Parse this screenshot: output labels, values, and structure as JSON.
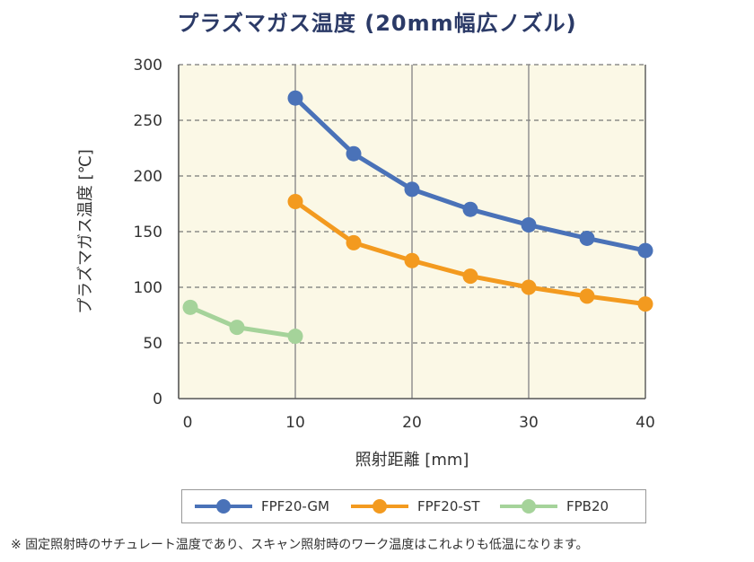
{
  "chart_data": {
    "type": "line",
    "title": "プラズマガス温度 (20mm幅広ノズル)",
    "xlabel": "照射距離 [mm]",
    "ylabel": "プラズマガス温度 [℃]",
    "xlim": [
      0,
      40
    ],
    "ylim": [
      0,
      300
    ],
    "xticks": [
      "0",
      "10",
      "20",
      "30",
      "40"
    ],
    "yticks": [
      "0",
      "50",
      "100",
      "150",
      "200",
      "250",
      "300"
    ],
    "grid": true,
    "legend_position": "bottom",
    "series": [
      {
        "name": "FPF20-GM",
        "color": "#4a72b8",
        "x": [
          10,
          15,
          20,
          25,
          30,
          35,
          40
        ],
        "y": [
          270,
          220,
          188,
          170,
          156,
          144,
          133
        ]
      },
      {
        "name": "FPF20-ST",
        "color": "#f39a1f",
        "x": [
          10,
          15,
          20,
          25,
          30,
          35,
          40
        ],
        "y": [
          177,
          140,
          124,
          110,
          100,
          92,
          85
        ]
      },
      {
        "name": "FPB20",
        "color": "#a5d39a",
        "x": [
          1,
          5,
          10
        ],
        "y": [
          82,
          64,
          56
        ]
      }
    ]
  },
  "footnote": "※ 固定照射時のサチュレート温度であり、スキャン照射時のワーク温度はこれよりも低温になります。"
}
